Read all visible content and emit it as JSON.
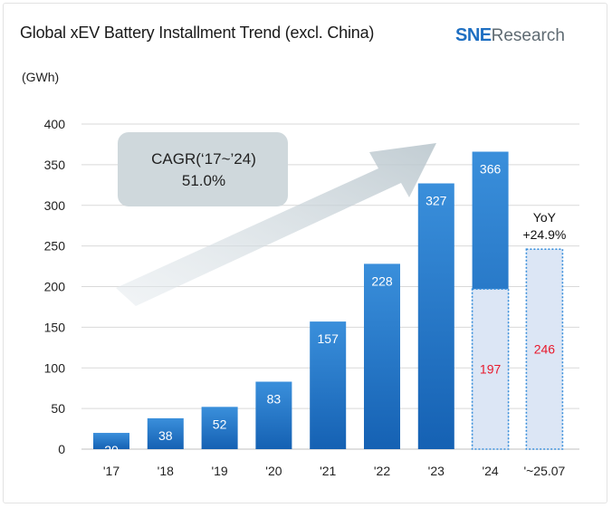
{
  "title": "Global xEV Battery Installment Trend (excl. China)",
  "logo": {
    "brand": "SNE",
    "suffix": "Research"
  },
  "unit_label": "(GWh)",
  "cagr": {
    "line1": "CAGR(‘17~’24)",
    "line2": "51.0%"
  },
  "yoy": {
    "line1": "YoY",
    "line2": "+24.9%"
  },
  "colors": {
    "bar_top": "#3a8fdb",
    "bar_bottom": "#1561b3",
    "bar_label": "#ffffff",
    "partial_fill": "#dce6f5",
    "partial_border": "#3a8fdb",
    "partial_label": "#e8192c",
    "cagr_box": "#cfd8dc",
    "grid": "#d9d9d9"
  },
  "chart_data": {
    "type": "bar",
    "title": "Global xEV Battery Installment Trend (excl. China)",
    "ylabel": "(GWh)",
    "xlabel": "",
    "ylim": [
      0,
      400
    ],
    "yticks": [
      0,
      50,
      100,
      150,
      200,
      250,
      300,
      350,
      400
    ],
    "grid": true,
    "categories": [
      "'17",
      "'18",
      "'19",
      "'20",
      "'21",
      "'22",
      "'23",
      "'24",
      "'~25.07"
    ],
    "values": [
      20,
      38,
      52,
      83,
      157,
      228,
      327,
      366,
      null
    ],
    "partial_values": [
      null,
      null,
      null,
      null,
      null,
      null,
      null,
      197,
      246
    ],
    "annotations": [
      "CAGR(‘17~’24) 51.0%",
      "YoY +24.9%"
    ]
  }
}
